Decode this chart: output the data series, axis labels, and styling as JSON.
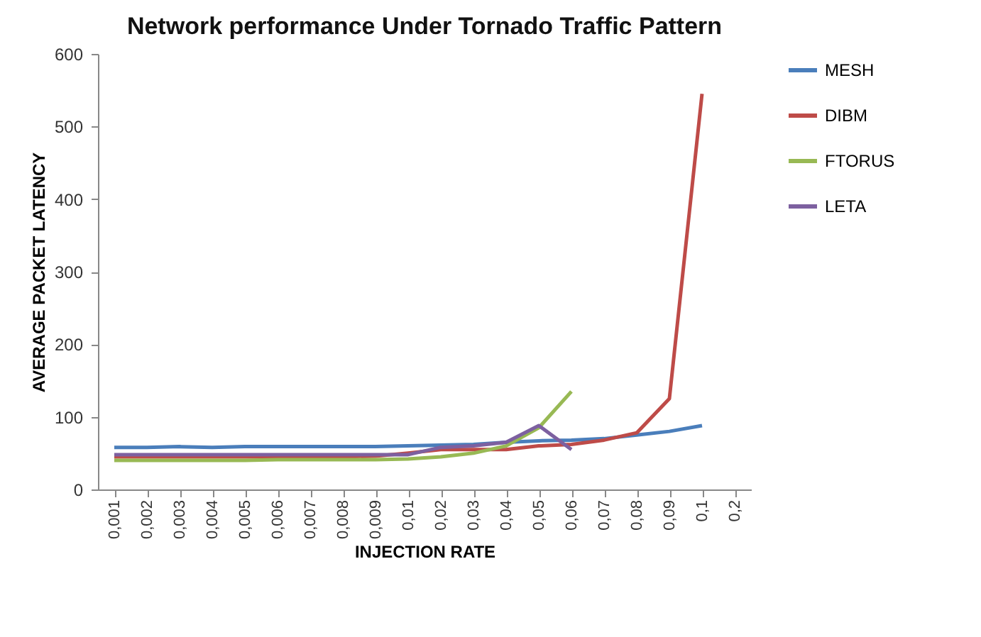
{
  "chart_data": {
    "type": "line",
    "title": "Network performance Under Tornado Traffic Pattern",
    "xlabel": "INJECTION RATE",
    "ylabel": "AVERAGE PACKET LATENCY",
    "categories": [
      "0,001",
      "0,002",
      "0,003",
      "0,004",
      "0,005",
      "0,006",
      "0,007",
      "0,008",
      "0,009",
      "0,01",
      "0,02",
      "0,03",
      "0,04",
      "0,05",
      "0,06",
      "0,07",
      "0,08",
      "0,09",
      "0,1",
      "0,2"
    ],
    "series": [
      {
        "name": "MESH",
        "color": "#4a7ebb",
        "values": [
          58,
          58,
          59,
          58,
          59,
          59,
          59,
          59,
          59,
          60,
          61,
          62,
          65,
          67,
          68,
          70,
          75,
          80,
          88,
          null
        ]
      },
      {
        "name": "DIBM",
        "color": "#be4b48",
        "values": [
          45,
          45,
          45,
          45,
          45,
          45,
          45,
          45,
          46,
          50,
          55,
          55,
          55,
          60,
          62,
          68,
          78,
          125,
          545,
          null
        ]
      },
      {
        "name": "FTORUS",
        "color": "#98b954",
        "values": [
          40,
          40,
          40,
          40,
          40,
          41,
          41,
          41,
          41,
          42,
          45,
          50,
          60,
          85,
          135,
          null,
          null,
          null,
          null,
          null
        ]
      },
      {
        "name": "LETA",
        "color": "#7d60a0",
        "values": [
          48,
          48,
          48,
          48,
          48,
          48,
          48,
          48,
          48,
          48,
          58,
          60,
          65,
          88,
          55,
          null,
          null,
          null,
          null,
          null
        ]
      }
    ],
    "ylim": [
      0,
      600
    ],
    "yticks": [
      0,
      100,
      200,
      300,
      400,
      500,
      600
    ],
    "legend": "right"
  }
}
